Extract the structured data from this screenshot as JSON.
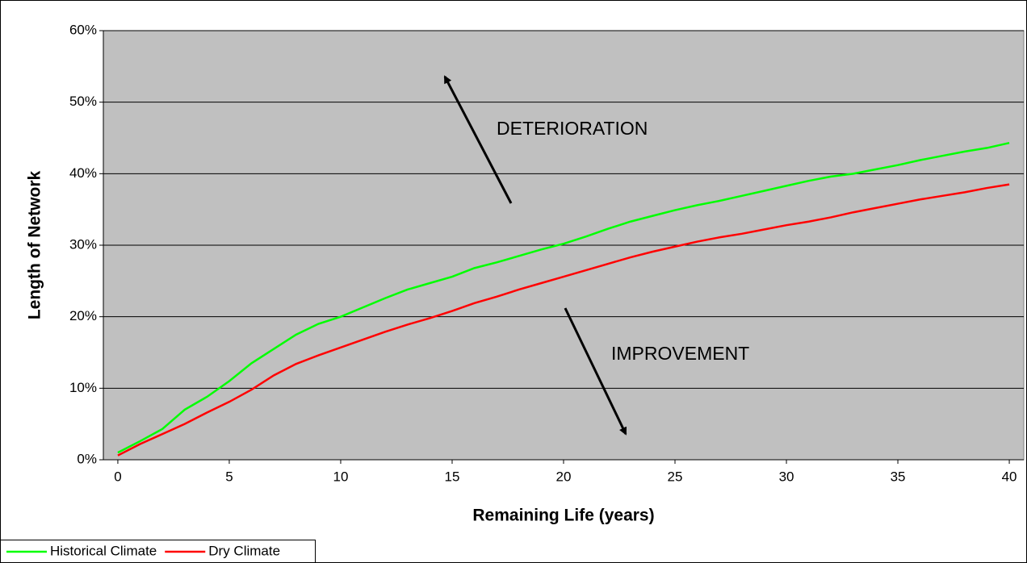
{
  "chart_data": {
    "type": "line",
    "x_label": "Remaining Life (years)",
    "y_label": "Length of Network",
    "x": [
      0,
      1,
      2,
      3,
      4,
      5,
      6,
      7,
      8,
      9,
      10,
      11,
      12,
      13,
      14,
      15,
      16,
      17,
      18,
      19,
      20,
      21,
      22,
      23,
      24,
      25,
      26,
      27,
      28,
      29,
      30,
      31,
      32,
      33,
      34,
      35,
      36,
      37,
      38,
      39,
      40
    ],
    "series": [
      {
        "name": "Historical Climate",
        "color": "#00ff00",
        "values": [
          1.0,
          2.6,
          4.3,
          7,
          8.8,
          11,
          13.5,
          15.5,
          17.5,
          19,
          20,
          21.3,
          22.6,
          23.8,
          24.7,
          25.6,
          26.8,
          27.6,
          28.5,
          29.4,
          30.2,
          31.2,
          32.3,
          33.3,
          34.1,
          34.9,
          35.6,
          36.2,
          36.9,
          37.6,
          38.3,
          39,
          39.6,
          40,
          40.6,
          41.2,
          41.9,
          42.5,
          43.1,
          43.6,
          44.3
        ]
      },
      {
        "name": "Dry Climate",
        "color": "#ff0000",
        "values": [
          0.6,
          2.2,
          3.6,
          5,
          6.6,
          8.1,
          9.8,
          11.8,
          13.4,
          14.6,
          15.7,
          16.8,
          17.9,
          18.9,
          19.8,
          20.8,
          21.9,
          22.8,
          23.8,
          24.7,
          25.6,
          26.5,
          27.4,
          28.3,
          29.1,
          29.8,
          30.5,
          31.1,
          31.6,
          32.2,
          32.8,
          33.3,
          33.9,
          34.6,
          35.2,
          35.8,
          36.4,
          36.9,
          37.4,
          38,
          38.5
        ]
      }
    ],
    "xlim": [
      -0.65,
      40.65
    ],
    "xticks": [
      0,
      5,
      10,
      15,
      20,
      25,
      30,
      35,
      40
    ],
    "ylim": [
      0,
      60
    ],
    "yticks": [
      {
        "value": 0,
        "label": "0%"
      },
      {
        "value": 10,
        "label": "10%"
      },
      {
        "value": 20,
        "label": "20%"
      },
      {
        "value": 30,
        "label": "30%"
      },
      {
        "value": 40,
        "label": "40%"
      },
      {
        "value": 50,
        "label": "50%"
      },
      {
        "value": 60,
        "label": "60%"
      }
    ],
    "grid": true,
    "plot_background": "#c0c0c0",
    "legend": "bottom-left",
    "annotations": [
      "DETERIORATION",
      "IMPROVEMENT"
    ]
  }
}
